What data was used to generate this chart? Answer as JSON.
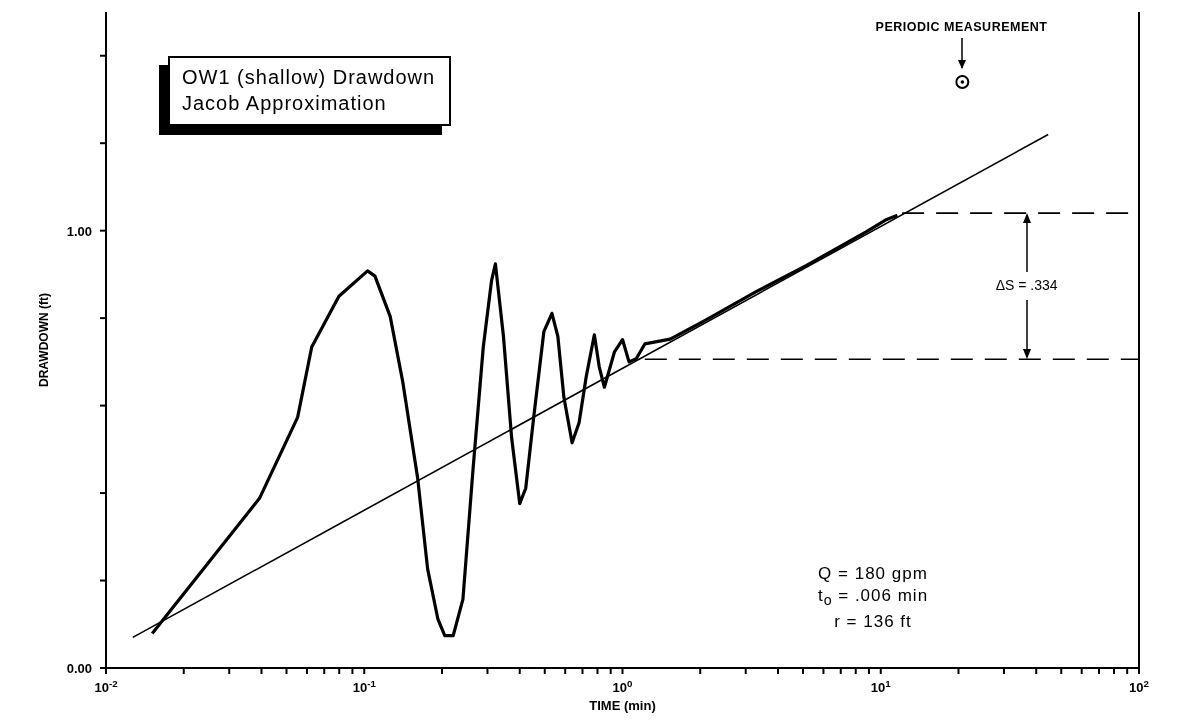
{
  "chart_data": {
    "type": "line",
    "title": "OW1 (shallow) Drawdown",
    "subtitle": "Jacob Approximation",
    "xlabel": "TIME (min)",
    "ylabel": "DRAWDOWN (ft)",
    "log": "x",
    "grid": false,
    "legend": false,
    "xlim": [
      0.01,
      100
    ],
    "ylim": [
      0,
      1.5
    ],
    "xticks": [
      {
        "value": 0.01,
        "label": "10$^{-2}$"
      },
      {
        "value": 0.02,
        "label": null
      },
      {
        "value": 0.03,
        "label": null
      },
      {
        "value": 0.04,
        "label": null
      },
      {
        "value": 0.05,
        "label": null
      },
      {
        "value": 0.06,
        "label": null
      },
      {
        "value": 0.07,
        "label": null
      },
      {
        "value": 0.08,
        "label": null
      },
      {
        "value": 0.09,
        "label": null
      },
      {
        "value": 0.1,
        "label": "10$^{-1}$"
      },
      {
        "value": 0.2,
        "label": null
      },
      {
        "value": 0.3,
        "label": null
      },
      {
        "value": 0.4,
        "label": null
      },
      {
        "value": 0.5,
        "label": null
      },
      {
        "value": 0.6,
        "label": null
      },
      {
        "value": 0.7,
        "label": null
      },
      {
        "value": 0.8,
        "label": null
      },
      {
        "value": 0.9,
        "label": null
      },
      {
        "value": 1,
        "label": "10$^{0}$"
      },
      {
        "value": 2,
        "label": null
      },
      {
        "value": 3,
        "label": null
      },
      {
        "value": 4,
        "label": null
      },
      {
        "value": 5,
        "label": null
      },
      {
        "value": 6,
        "label": null
      },
      {
        "value": 7,
        "label": null
      },
      {
        "value": 8,
        "label": null
      },
      {
        "value": 9,
        "label": null
      },
      {
        "value": 10,
        "label": "10$^{1}$"
      },
      {
        "value": 20,
        "label": null
      },
      {
        "value": 30,
        "label": null
      },
      {
        "value": 40,
        "label": null
      },
      {
        "value": 50,
        "label": null
      },
      {
        "value": 60,
        "label": null
      },
      {
        "value": 70,
        "label": null
      },
      {
        "value": 80,
        "label": null
      },
      {
        "value": 90,
        "label": null
      },
      {
        "value": 100,
        "label": "10$^{2}$"
      }
    ],
    "yticks": [
      {
        "value": 0,
        "label": "0.00"
      },
      {
        "value": 0.2,
        "label": null
      },
      {
        "value": 0.4,
        "label": null
      },
      {
        "value": 0.6,
        "label": null
      },
      {
        "value": 0.8,
        "label": null
      },
      {
        "value": 1,
        "label": "1.00"
      },
      {
        "value": 1.2,
        "label": null
      },
      {
        "value": 1.4,
        "label": null
      }
    ],
    "series": [
      {
        "color": "#000000",
        "x": [
          0.0151,
          0.0393,
          0.0552,
          0.0626,
          0.0798,
          0.103,
          0.11,
          0.126,
          0.141,
          0.161,
          0.176,
          0.193,
          0.205,
          0.221,
          0.241,
          0.264,
          0.289,
          0.311,
          0.322,
          0.346,
          0.372,
          0.4,
          0.422,
          0.453,
          0.496,
          0.533,
          0.562,
          0.593,
          0.638,
          0.679,
          0.723,
          0.778,
          0.813,
          0.851,
          0.931,
          1.0,
          1.06,
          1.13,
          1.22,
          1.53,
          2.09,
          3.28,
          5.14,
          8.81,
          10.5,
          11.6
        ],
        "values": [
          0.079,
          0.388,
          0.573,
          0.734,
          0.85,
          0.908,
          0.896,
          0.804,
          0.654,
          0.434,
          0.226,
          0.111,
          0.074,
          0.074,
          0.157,
          0.457,
          0.734,
          0.885,
          0.924,
          0.758,
          0.527,
          0.376,
          0.411,
          0.573,
          0.769,
          0.811,
          0.758,
          0.619,
          0.515,
          0.561,
          0.665,
          0.762,
          0.688,
          0.642,
          0.723,
          0.751,
          0.7,
          0.707,
          0.741,
          0.752,
          0.795,
          0.86,
          0.92,
          0.998,
          1.025,
          1.035
        ]
      },
      {
        "color": "#000000",
        "x": [
          0.0127,
          44.5
        ],
        "values": [
          0.07,
          1.22
        ]
      },
      {
        "color": "#000000",
        "line_style": "dashed",
        "x": [
          1.22,
          100
        ],
        "values": [
          0.706,
          0.706
        ]
      },
      {
        "color": "#000000",
        "line_style": "dashed",
        "x": [
          12.1,
          100
        ],
        "values": [
          1.04,
          1.04
        ]
      },
      {
        "type": "scatter",
        "color": "#000000",
        "marker": "circle",
        "x": [
          20.7
        ],
        "values": [
          1.34
        ]
      }
    ],
    "annotations": [
      "PERIODIC MEASUREMENT",
      {
        "text": "ΔS = .334",
        "x": 37,
        "y": 1.04
      },
      "Q = 180 gpm",
      "t$_{o}$ = .006 min",
      "r = 136 ft"
    ]
  }
}
